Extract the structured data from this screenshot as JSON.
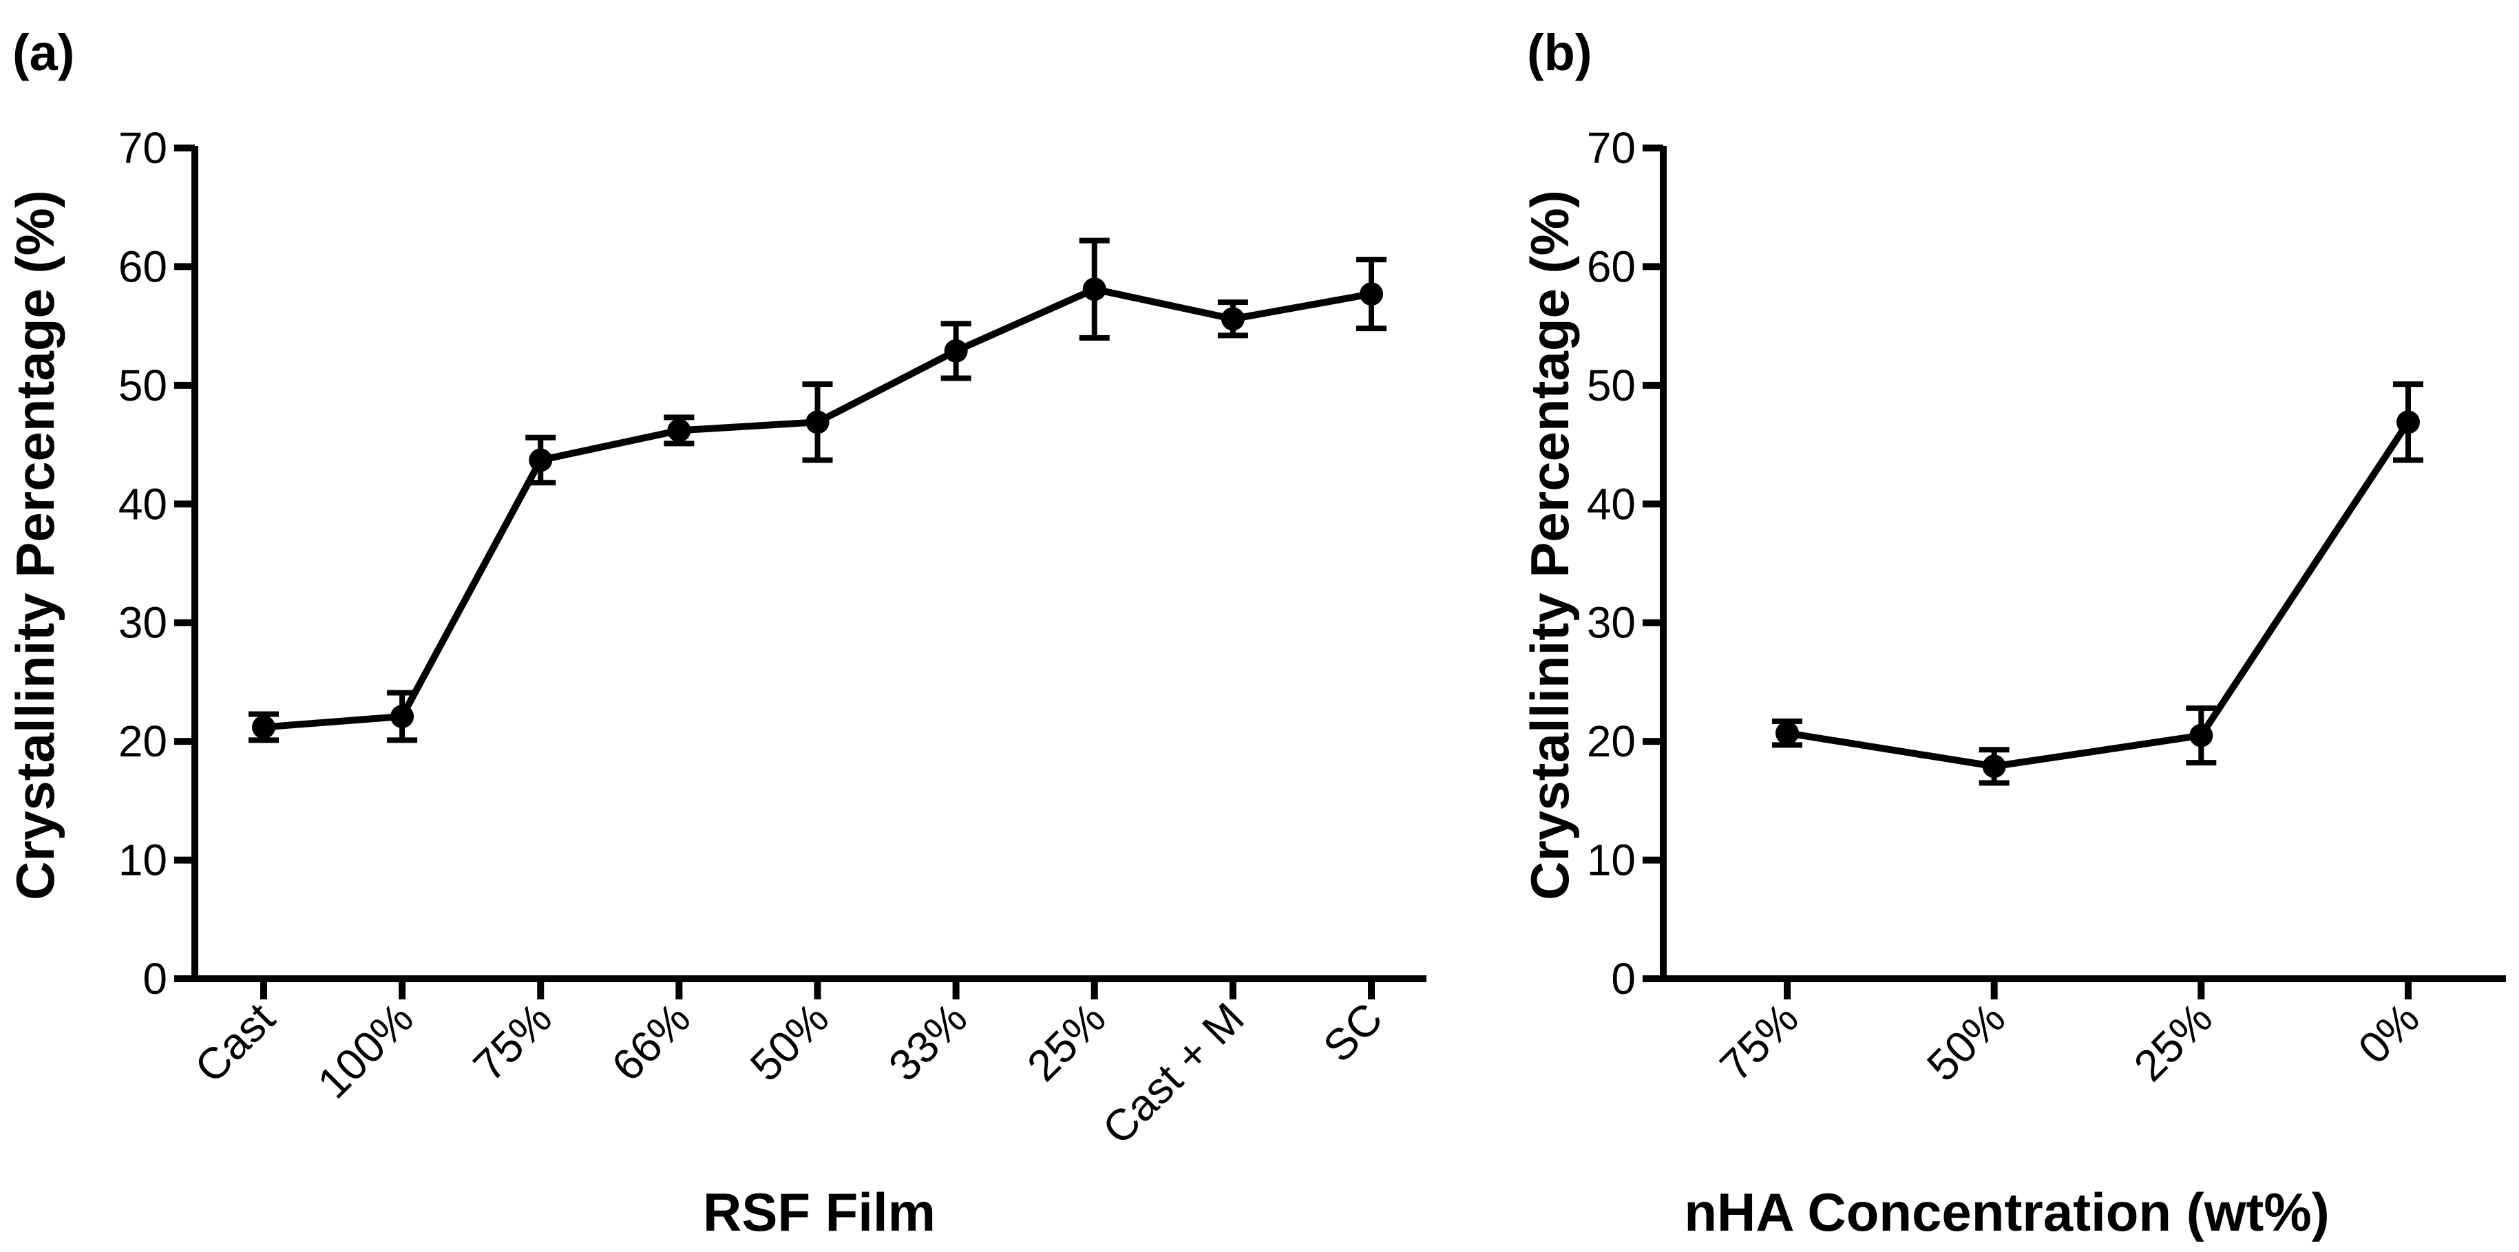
{
  "chart_data": [
    {
      "type": "line",
      "panel_label": "(a)",
      "title": "",
      "xlabel": "RSF Film",
      "ylabel": "Crystallinity Percentage (%)",
      "categories": [
        "Cast",
        "100%",
        "75%",
        "66%",
        "50%",
        "33%",
        "25%",
        "Cast + M",
        "SC"
      ],
      "series": [
        {
          "name": "Crystallinity",
          "values": [
            21.2,
            22.1,
            43.7,
            46.2,
            46.9,
            52.9,
            58.1,
            55.6,
            57.7
          ],
          "errors": [
            1.1,
            2.0,
            1.9,
            1.1,
            3.2,
            2.3,
            4.1,
            1.4,
            2.9
          ]
        }
      ],
      "ylim": [
        0,
        70
      ],
      "yticks": [
        0,
        10,
        20,
        30,
        40,
        50,
        60,
        70
      ],
      "grid": false,
      "legend": "none",
      "color": "#000000"
    },
    {
      "type": "line",
      "panel_label": "(b)",
      "title": "",
      "xlabel": "nHA Concentration (wt%)",
      "ylabel": "Crystallinity Percentage (%)",
      "categories": [
        "75%",
        "50%",
        "25%",
        "0%"
      ],
      "series": [
        {
          "name": "Crystallinity",
          "values": [
            20.7,
            17.9,
            20.5,
            46.9
          ],
          "errors": [
            1.0,
            1.4,
            2.3,
            3.2
          ]
        }
      ],
      "ylim": [
        0,
        70
      ],
      "yticks": [
        0,
        10,
        20,
        30,
        40,
        50,
        60,
        70
      ],
      "grid": false,
      "legend": "none",
      "color": "#000000"
    }
  ]
}
